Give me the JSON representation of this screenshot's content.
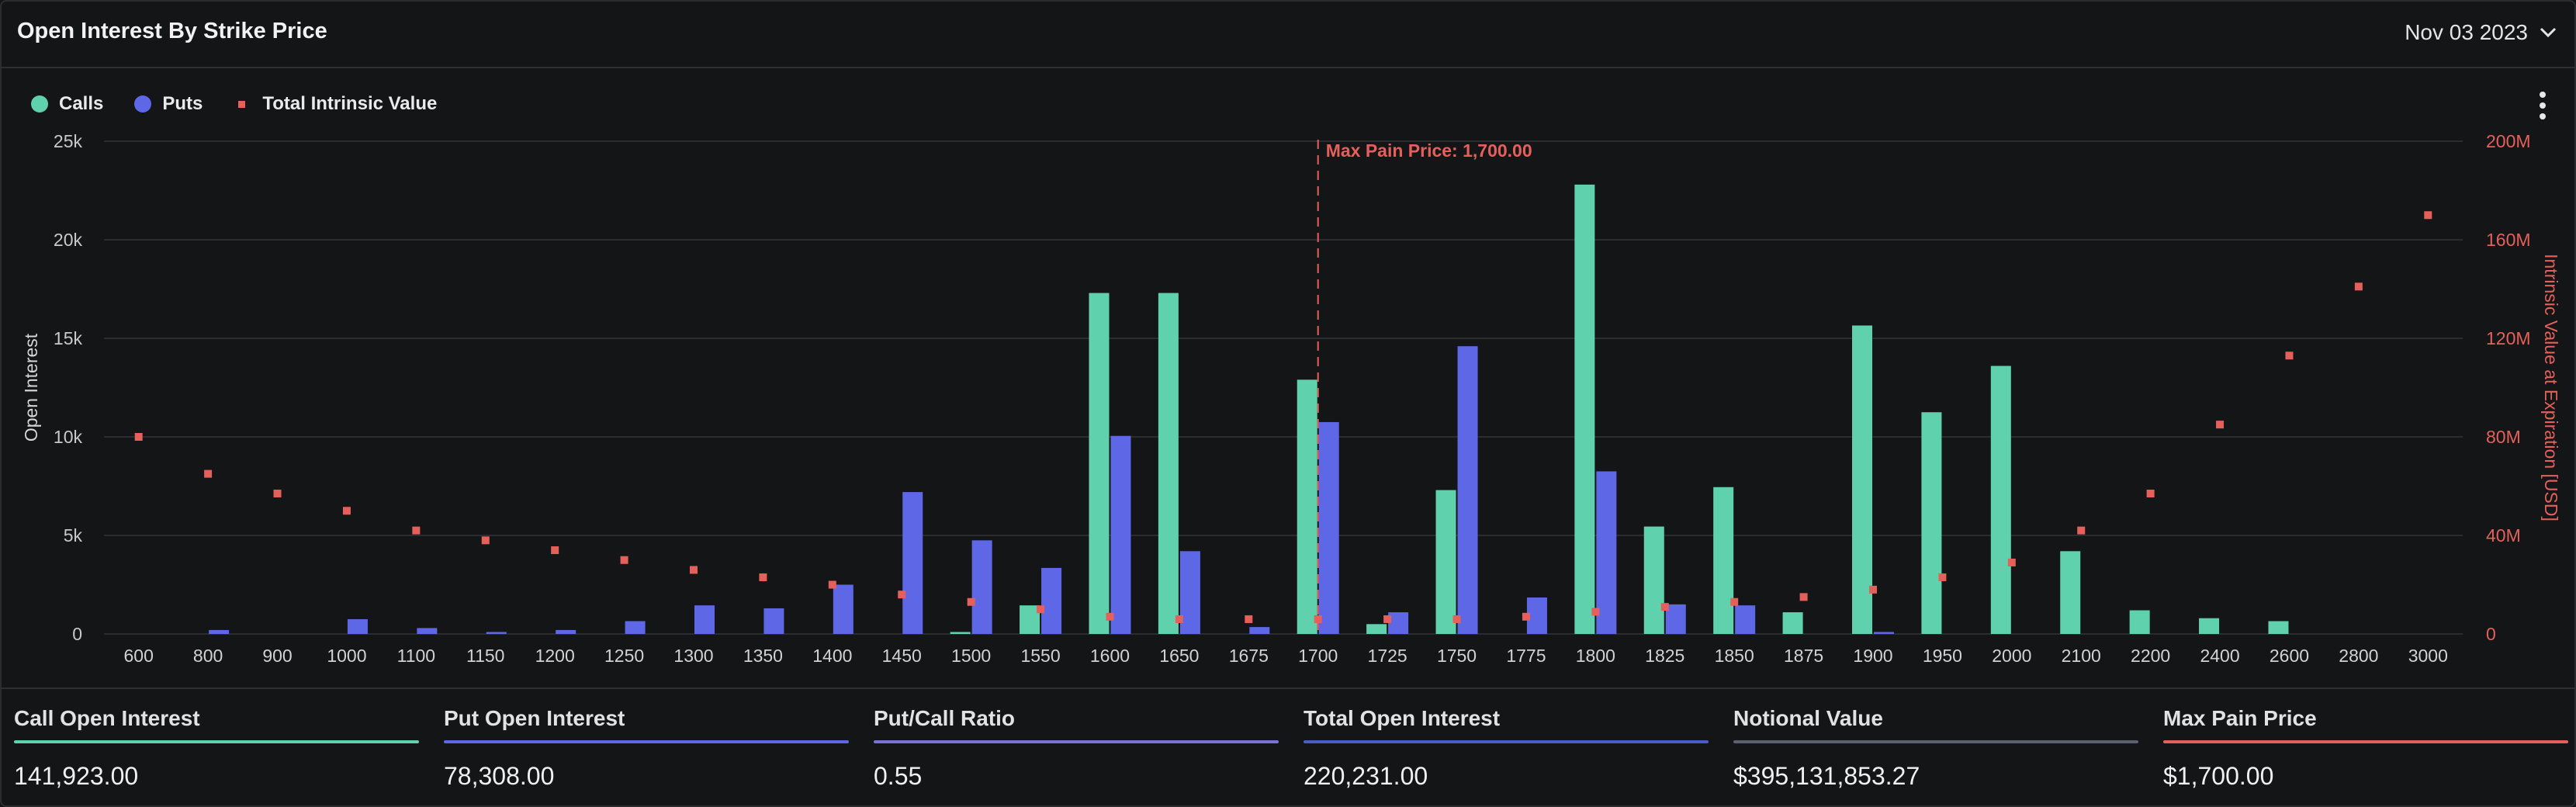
{
  "header": {
    "title": "Open Interest By Strike Price",
    "date": "Nov 03 2023"
  },
  "legend": {
    "calls": "Calls",
    "puts": "Puts",
    "intrinsic": "Total Intrinsic Value"
  },
  "colors": {
    "calls": "#5fd1ad",
    "puts": "#5e68e6",
    "intrinsic": "#e5605a",
    "marker": "#e5605a"
  },
  "chart_data": {
    "type": "bar",
    "categories": [
      "600",
      "800",
      "900",
      "1000",
      "1100",
      "1150",
      "1200",
      "1250",
      "1300",
      "1350",
      "1400",
      "1450",
      "1500",
      "1550",
      "1600",
      "1650",
      "1675",
      "1700",
      "1725",
      "1750",
      "1775",
      "1800",
      "1825",
      "1850",
      "1875",
      "1900",
      "1950",
      "2000",
      "2100",
      "2200",
      "2400",
      "2600",
      "2800",
      "3000"
    ],
    "series": [
      {
        "name": "Calls",
        "axis": "left",
        "values": [
          0,
          0,
          0,
          0,
          0,
          0,
          0,
          0,
          0,
          0,
          0,
          0,
          100,
          1450,
          17300,
          17300,
          0,
          12900,
          500,
          7300,
          0,
          22800,
          5450,
          7450,
          1100,
          15650,
          11250,
          13600,
          4200,
          1200,
          800,
          650,
          0,
          0
        ]
      },
      {
        "name": "Puts",
        "axis": "left",
        "values": [
          0,
          200,
          0,
          750,
          300,
          100,
          200,
          650,
          1450,
          1300,
          2500,
          7200,
          4750,
          3350,
          10050,
          4200,
          350,
          10750,
          1100,
          14600,
          1850,
          8250,
          1500,
          1450,
          0,
          100,
          0,
          0,
          0,
          0,
          0,
          0,
          0,
          0
        ]
      },
      {
        "name": "Total Intrinsic Value",
        "axis": "right",
        "style": "markers",
        "values": [
          80000000,
          65000000,
          57000000,
          50000000,
          42000000,
          38000000,
          34000000,
          30000000,
          26000000,
          23000000,
          20000000,
          16000000,
          13000000,
          10000000,
          7000000,
          6000000,
          6000000,
          6000000,
          6000000,
          6000000,
          7000000,
          9000000,
          11000000,
          13000000,
          15000000,
          18000000,
          23000000,
          29000000,
          42000000,
          57000000,
          85000000,
          113000000,
          141000000,
          170000000
        ]
      }
    ],
    "y_left": {
      "label": "Open Interest",
      "ticks": [
        "0",
        "5k",
        "10k",
        "15k",
        "20k",
        "25k"
      ],
      "ylim": [
        0,
        25000
      ]
    },
    "y_right": {
      "label": "Intrinsic Value at Expiration [USD]",
      "ticks": [
        "0",
        "40M",
        "80M",
        "120M",
        "160M",
        "200M"
      ],
      "ylim": [
        0,
        200000000
      ]
    },
    "marker": {
      "label": "Max Pain Price: 1,700.00",
      "category": "1700"
    },
    "grid": true,
    "legend_position": "top-left"
  },
  "stats": [
    {
      "label": "Call Open Interest",
      "value": "141,923.00",
      "color": "#5fd1ad"
    },
    {
      "label": "Put Open Interest",
      "value": "78,308.00",
      "color": "#5e68e6"
    },
    {
      "label": "Put/Call Ratio",
      "value": "0.55",
      "color": "#7a72d8"
    },
    {
      "label": "Total Open Interest",
      "value": "220,231.00",
      "color": "#4a5cc8"
    },
    {
      "label": "Notional Value",
      "value": "$395,131,853.27",
      "color": "#5b6072"
    },
    {
      "label": "Max Pain Price",
      "value": "$1,700.00",
      "color": "#e5605a"
    }
  ]
}
